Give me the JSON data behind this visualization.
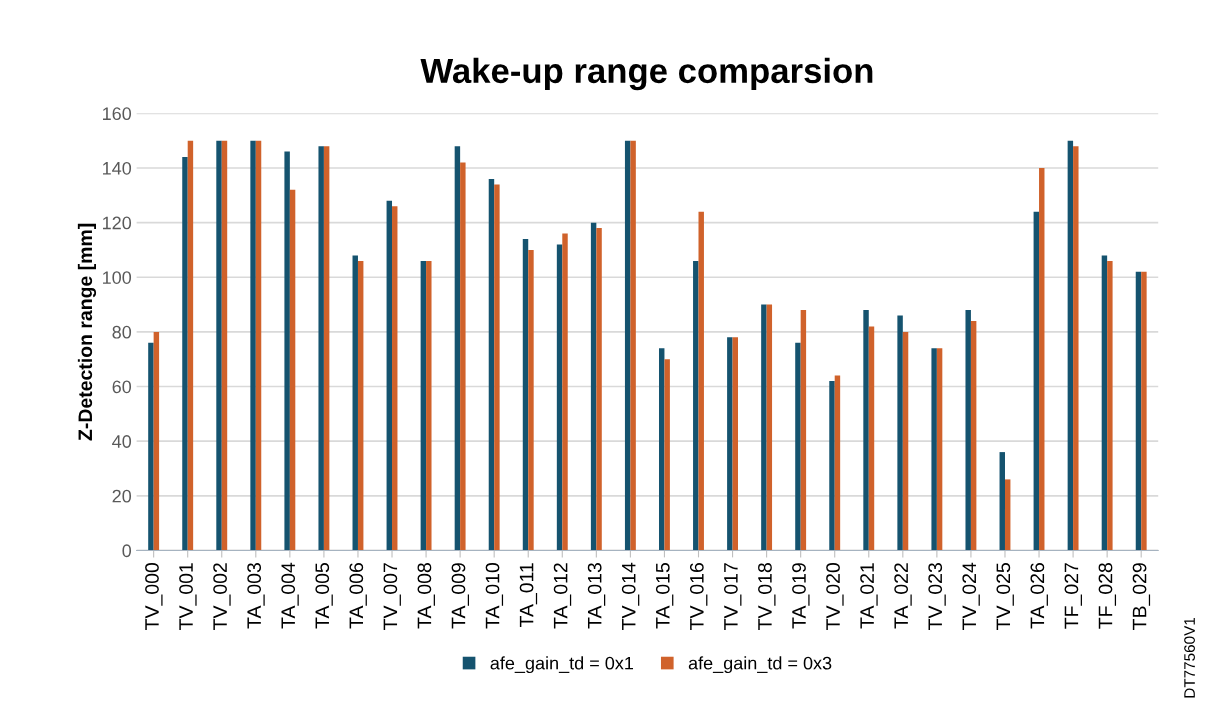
{
  "chart_data": {
    "type": "bar",
    "title": "Wake-up range comparsion",
    "ylabel": "Z-Detection range [mm]",
    "categories": [
      "TV_000",
      "TV_001",
      "TV_002",
      "TA_003",
      "TA_004",
      "TA_005",
      "TA_006",
      "TV_007",
      "TA_008",
      "TA_009",
      "TA_010",
      "TA_011",
      "TA_012",
      "TA_013",
      "TV_014",
      "TA_015",
      "TV_016",
      "TV_017",
      "TV_018",
      "TA_019",
      "TV_020",
      "TA_021",
      "TA_022",
      "TV_023",
      "TV_024",
      "TV_025",
      "TA_026",
      "TF_027",
      "TF_028",
      "TB_029"
    ],
    "series": [
      {
        "name": "afe_gain_td = 0x1",
        "color": "#15536f",
        "values": [
          76,
          144,
          150,
          150,
          146,
          148,
          108,
          128,
          106,
          148,
          136,
          114,
          112,
          120,
          150,
          74,
          106,
          78,
          90,
          76,
          62,
          88,
          86,
          74,
          88,
          36,
          124,
          150,
          108,
          102
        ]
      },
      {
        "name": "afe_gain_td = 0x3",
        "color": "#d0622b",
        "values": [
          80,
          150,
          150,
          150,
          132,
          148,
          106,
          126,
          106,
          142,
          134,
          110,
          116,
          118,
          150,
          70,
          124,
          78,
          90,
          88,
          64,
          82,
          80,
          74,
          84,
          26,
          140,
          148,
          106,
          102
        ]
      }
    ],
    "ylim": [
      0,
      160
    ],
    "yticks": [
      0,
      20,
      40,
      60,
      80,
      100,
      120,
      140,
      160
    ],
    "grid": "y",
    "legend": "bottom",
    "annotations": [
      "DT77560V1"
    ]
  }
}
